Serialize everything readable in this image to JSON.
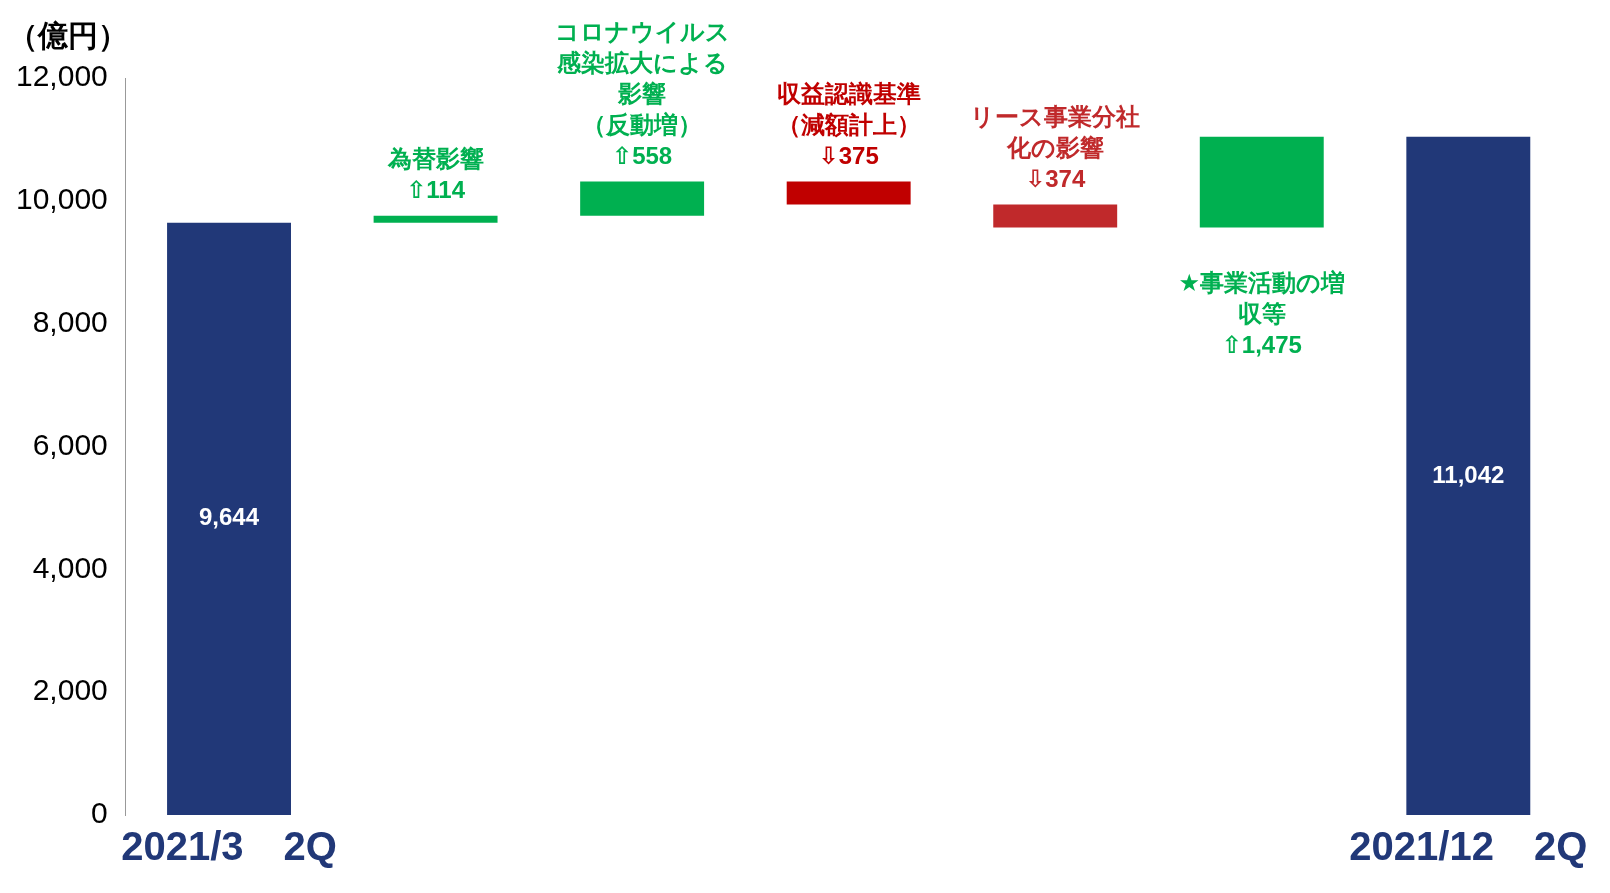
{
  "chart_data": {
    "type": "bar",
    "ylabel": "（億円）",
    "categories": [
      "2021/3　2Q",
      null,
      null,
      null,
      null,
      null,
      "2021/12　2Q"
    ],
    "values": [
      9644,
      114,
      558,
      -375,
      -374,
      1475,
      11042
    ],
    "base": [
      0,
      9644,
      9758,
      10316,
      9941,
      9567,
      0
    ],
    "colors": [
      "#213878",
      "#00b050",
      "#00b050",
      "#c00000",
      "#c0292b",
      "#00b050",
      "#213878"
    ],
    "value_labels": [
      "9,644",
      "為替影響⇧114",
      "コロナウイルス感染拡大による影響（反動増）⇧558",
      "収益認識基準（減額計上）⇩375",
      "リース事業分社化の影響⇩374",
      "★事業活動の増収等⇧1,475",
      "11,042"
    ],
    "ylim": [
      0,
      12000
    ],
    "yticks": [
      {
        "value": 0,
        "label": "0"
      },
      {
        "value": 2000,
        "label": "2,000"
      },
      {
        "value": 4000,
        "label": "4,000"
      },
      {
        "value": 6000,
        "label": "6,000"
      },
      {
        "value": 8000,
        "label": "8,000"
      },
      {
        "value": 10000,
        "label": "10,000"
      },
      {
        "value": 12000,
        "label": "12,000"
      }
    ],
    "grid": false,
    "legend": false
  }
}
